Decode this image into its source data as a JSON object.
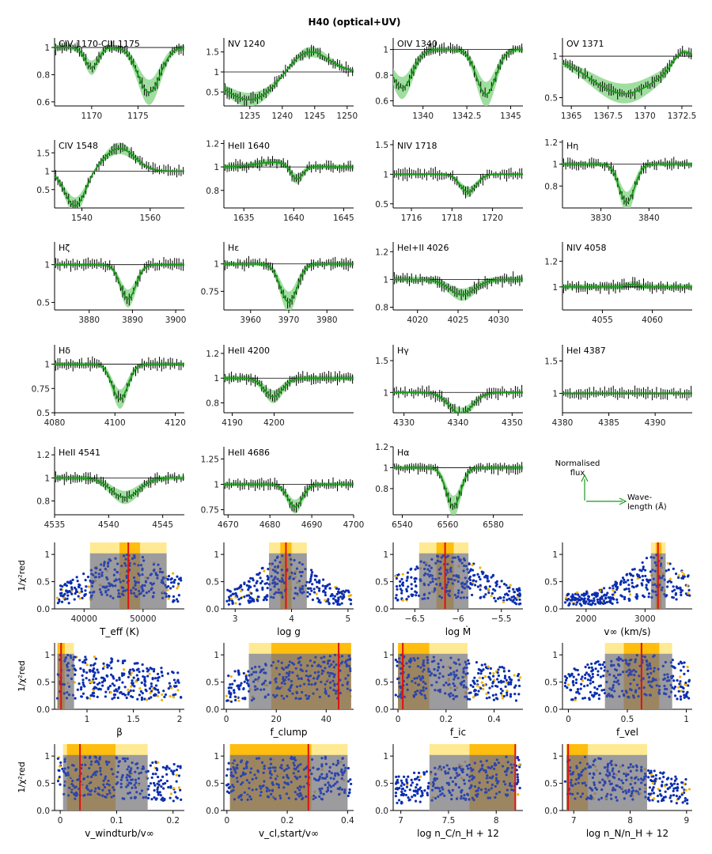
{
  "title": "H40 (optical+UV)",
  "colors": {
    "model": "#1a9a1a",
    "band": "#8fd88f",
    "obs": "#000000",
    "cloud": "#0a2db0",
    "cloudAlt": "#f2b400",
    "ylight": "#ffe680",
    "ydark": "#ffb800",
    "best": "#e01010"
  },
  "legend": {
    "y_label_1": "Normalised",
    "y_label_2": "flux",
    "x_label_1": "Wave-",
    "x_label_2": "length (Å)"
  },
  "chart_data": [
    {
      "type": "line",
      "label": "CIV 1170-CIII 1175",
      "xlim": [
        1166,
        1180
      ],
      "ylim": [
        0.57,
        1.07
      ],
      "xticks": [
        1170,
        1175
      ],
      "yticks": [
        0.6,
        0.8,
        1.0
      ],
      "profile": [
        {
          "c": 1170,
          "d": 0.15,
          "w": 0.7
        },
        {
          "c": 1176.2,
          "d": 0.33,
          "w": 1.2
        }
      ]
    },
    {
      "type": "line",
      "label": "NV 1240",
      "xlim": [
        1231,
        1251
      ],
      "ylim": [
        0.15,
        1.85
      ],
      "xticks": [
        1235,
        1240,
        1245,
        1250
      ],
      "yticks": [
        0.5,
        1.0,
        1.5
      ],
      "profile": [
        {
          "c": 1235,
          "d": 0.7,
          "w": 4
        },
        {
          "c": 1244,
          "d": -0.55,
          "w": 3
        }
      ]
    },
    {
      "type": "line",
      "label": "OIV 1340",
      "xlim": [
        1338.3,
        1345.7
      ],
      "ylim": [
        0.56,
        1.09
      ],
      "xticks": [
        1340.0,
        1342.5,
        1345.0
      ],
      "yticks": [
        0.6,
        0.8,
        1.0
      ],
      "profile": [
        {
          "c": 1338.8,
          "d": 0.3,
          "w": 0.6
        },
        {
          "c": 1343.6,
          "d": 0.35,
          "w": 0.55
        }
      ]
    },
    {
      "type": "line",
      "label": "OV 1371",
      "xlim": [
        1364.4,
        1373.2
      ],
      "ylim": [
        0.4,
        1.22
      ],
      "xticks": [
        1365.0,
        1367.5,
        1370.0,
        1372.5
      ],
      "yticks": [
        0.5,
        1.0
      ],
      "profile": [
        {
          "c": 1368.6,
          "d": 0.45,
          "w": 2.3
        },
        {
          "c": 1372.5,
          "d": -0.15,
          "w": 0.6
        }
      ]
    },
    {
      "type": "line",
      "label": "CIV 1548",
      "xlim": [
        1532,
        1570
      ],
      "ylim": [
        0.0,
        1.85
      ],
      "xticks": [
        1540,
        1560
      ],
      "yticks": [
        0.5,
        1.0,
        1.5
      ],
      "profile": [
        {
          "c": 1538,
          "d": 0.95,
          "w": 3
        },
        {
          "c": 1551,
          "d": -0.62,
          "w": 4.5
        }
      ]
    },
    {
      "type": "line",
      "label": "HeII 1640",
      "xlim": [
        1633,
        1646
      ],
      "ylim": [
        0.65,
        1.23
      ],
      "xticks": [
        1635,
        1640,
        1645
      ],
      "yticks": [
        0.8,
        1.0,
        1.2
      ],
      "profile": [
        {
          "c": 1640.3,
          "d": 0.12,
          "w": 0.6
        },
        {
          "c": 1638,
          "d": -0.04,
          "w": 1.8
        }
      ]
    },
    {
      "type": "line",
      "label": "NIV 1718",
      "xlim": [
        1715.1,
        1721.5
      ],
      "ylim": [
        0.43,
        1.58
      ],
      "xticks": [
        1716,
        1718,
        1720
      ],
      "yticks": [
        0.5,
        1.0,
        1.5
      ],
      "profile": [
        {
          "c": 1718.8,
          "d": 0.3,
          "w": 0.4
        }
      ]
    },
    {
      "type": "line",
      "label": "Hη",
      "xlim": [
        3822,
        3849
      ],
      "ylim": [
        0.6,
        1.22
      ],
      "xticks": [
        3830,
        3840
      ],
      "yticks": [
        0.8,
        1.0,
        1.2
      ],
      "profile": [
        {
          "c": 3835.4,
          "d": 0.35,
          "w": 1.6
        }
      ]
    },
    {
      "type": "line",
      "label": "Hζ",
      "xlim": [
        3872,
        3902
      ],
      "ylim": [
        0.4,
        1.3
      ],
      "xticks": [
        3880,
        3890,
        3900
      ],
      "yticks": [
        0.5,
        1.0
      ],
      "profile": [
        {
          "c": 3889,
          "d": 0.45,
          "w": 1.8
        }
      ]
    },
    {
      "type": "line",
      "label": "Hε",
      "xlim": [
        3953,
        3987
      ],
      "ylim": [
        0.58,
        1.2
      ],
      "xticks": [
        3960,
        3970,
        3980
      ],
      "yticks": [
        0.75,
        1.0
      ],
      "profile": [
        {
          "c": 3970,
          "d": 0.35,
          "w": 2.2
        }
      ]
    },
    {
      "type": "line",
      "label": "HeI+II 4026",
      "xlim": [
        4017,
        4033
      ],
      "ylim": [
        0.78,
        1.27
      ],
      "xticks": [
        4020,
        4025,
        4030
      ],
      "yticks": [
        0.8,
        1.0,
        1.2
      ],
      "profile": [
        {
          "c": 4025.5,
          "d": 0.11,
          "w": 1.6
        }
      ]
    },
    {
      "type": "line",
      "label": "NIV 4058",
      "xlim": [
        4051,
        4064
      ],
      "ylim": [
        0.82,
        1.35
      ],
      "xticks": [
        4055,
        4060
      ],
      "yticks": [
        1.0,
        1.2
      ],
      "profile": [
        {
          "c": 4058,
          "d": -0.02,
          "w": 0.6
        }
      ]
    },
    {
      "type": "line",
      "label": "Hδ",
      "xlim": [
        4080,
        4123
      ],
      "ylim": [
        0.5,
        1.2
      ],
      "xticks": [
        4080,
        4100,
        4120
      ],
      "yticks": [
        0.5,
        0.75,
        1.0
      ],
      "profile": [
        {
          "c": 4101.7,
          "d": 0.36,
          "w": 2.6
        }
      ]
    },
    {
      "type": "line",
      "label": "HeII 4200",
      "xlim": [
        4188,
        4219
      ],
      "ylim": [
        0.72,
        1.27
      ],
      "xticks": [
        4190,
        4200
      ],
      "yticks": [
        0.8,
        1.0,
        1.2
      ],
      "profile": [
        {
          "c": 4199.8,
          "d": 0.15,
          "w": 2.2
        }
      ]
    },
    {
      "type": "line",
      "label": "Hγ",
      "xlim": [
        4328,
        4352
      ],
      "ylim": [
        0.68,
        1.75
      ],
      "xticks": [
        4330,
        4340,
        4350
      ],
      "yticks": [
        1.0,
        1.5
      ],
      "profile": [
        {
          "c": 4340.5,
          "d": 0.33,
          "w": 2.2
        }
      ]
    },
    {
      "type": "line",
      "label": "HeI 4387",
      "xlim": [
        4380,
        4394
      ],
      "ylim": [
        0.7,
        1.75
      ],
      "xticks": [
        4380,
        4385,
        4390
      ],
      "yticks": [
        1.0,
        1.5
      ],
      "profile": []
    },
    {
      "type": "line",
      "label": "HeII 4541",
      "xlim": [
        4535,
        4547
      ],
      "ylim": [
        0.68,
        1.27
      ],
      "xticks": [
        4535,
        4540,
        4545
      ],
      "yticks": [
        0.8,
        1.0,
        1.2
      ],
      "profile": [
        {
          "c": 4541.5,
          "d": 0.17,
          "w": 1.3
        }
      ]
    },
    {
      "type": "line",
      "label": "HeII 4686",
      "xlim": [
        4669,
        4700
      ],
      "ylim": [
        0.7,
        1.37
      ],
      "xticks": [
        4670,
        4680,
        4690,
        4700
      ],
      "yticks": [
        0.75,
        1.0,
        1.25
      ],
      "profile": [
        {
          "c": 4686,
          "d": 0.22,
          "w": 1.8
        }
      ]
    },
    {
      "type": "line",
      "label": "Hα",
      "xlim": [
        6536,
        6593
      ],
      "ylim": [
        0.55,
        1.2
      ],
      "xticks": [
        6540,
        6560,
        6580
      ],
      "yticks": [
        0.8,
        1.0,
        1.2
      ],
      "profile": [
        {
          "c": 6562.5,
          "d": 0.37,
          "w": 3.2
        }
      ]
    },
    {
      "type": "scatter",
      "xlabel": "T_eff (K)",
      "xlim": [
        35000,
        57000
      ],
      "ylim": [
        0,
        1.22
      ],
      "xticks": [
        40000,
        50000
      ],
      "yticks": [
        0.0,
        0.5,
        1.0
      ],
      "peak": 47500,
      "spread": 6500,
      "best": 47500,
      "band1": [
        41000,
        54000
      ],
      "band2": [
        46000,
        49500
      ]
    },
    {
      "type": "scatter",
      "xlabel": "log g",
      "xlim": [
        2.8,
        5.1
      ],
      "ylim": [
        0,
        1.22
      ],
      "xticks": [
        3,
        4,
        5
      ],
      "yticks": [
        0.0,
        0.5,
        1.0
      ],
      "peak": 3.9,
      "spread": 0.45,
      "best": 3.9,
      "band1": [
        3.6,
        4.27
      ],
      "band2": [
        3.8,
        4.0
      ]
    },
    {
      "type": "scatter",
      "xlabel": "log Ṁ",
      "xlim": [
        -6.75,
        -5.25
      ],
      "ylim": [
        0,
        1.22
      ],
      "xticks": [
        -6.5,
        -6.0,
        -5.5
      ],
      "yticks": [
        0.0,
        0.5,
        1.0
      ],
      "peak": -6.15,
      "spread": 0.45,
      "best": -6.15,
      "band1": [
        -6.45,
        -5.88
      ],
      "band2": [
        -6.25,
        -6.05
      ]
    },
    {
      "type": "scatter",
      "xlabel": "v∞ (km/s)",
      "xlim": [
        1600,
        3800
      ],
      "ylim": [
        0,
        1.22
      ],
      "xticks": [
        2000,
        3000
      ],
      "yticks": [
        0.0,
        0.5,
        1.0
      ],
      "peak": 3220,
      "spread": 450,
      "best": 3220,
      "band1": [
        3100,
        3350
      ],
      "band2": [
        3180,
        3280
      ]
    },
    {
      "type": "scatter",
      "xlabel": "β",
      "xlim": [
        0.65,
        2.05
      ],
      "ylim": [
        0,
        1.22
      ],
      "xticks": [
        1.0,
        1.5,
        2.0
      ],
      "yticks": [
        0.0,
        0.5,
        1.0
      ],
      "peak": 0.72,
      "spread": 1.2,
      "best": 0.72,
      "band1": [
        0.68,
        0.86
      ],
      "band2": [
        0.68,
        0.76
      ]
    },
    {
      "type": "scatter",
      "xlabel": "f_clump",
      "xlim": [
        -1,
        51
      ],
      "ylim": [
        0,
        1.22
      ],
      "xticks": [
        0,
        20,
        40
      ],
      "yticks": [
        0.0,
        0.5,
        1.0
      ],
      "peak": 45,
      "spread": 40,
      "best": 45,
      "band1": [
        9,
        50
      ],
      "band2": [
        18,
        50
      ]
    },
    {
      "type": "scatter",
      "xlabel": "f_ic",
      "xlim": [
        -0.02,
        0.52
      ],
      "ylim": [
        0,
        1.22
      ],
      "xticks": [
        0.0,
        0.2,
        0.4
      ],
      "yticks": [
        0.0,
        0.5,
        1.0
      ],
      "peak": 0.02,
      "spread": 0.5,
      "best": 0.02,
      "band1": [
        0.0,
        0.29
      ],
      "band2": [
        0.0,
        0.13
      ]
    },
    {
      "type": "scatter",
      "xlabel": "f_vel",
      "xlim": [
        -0.05,
        1.05
      ],
      "ylim": [
        0,
        1.22
      ],
      "xticks": [
        0.0,
        0.5,
        1.0
      ],
      "yticks": [
        0.0,
        0.5,
        1.0
      ],
      "peak": 0.62,
      "spread": 0.6,
      "best": 0.62,
      "band1": [
        0.31,
        0.88
      ],
      "band2": [
        0.47,
        0.77
      ]
    },
    {
      "type": "scatter",
      "xlabel": "v_windturb/v∞",
      "xlim": [
        -0.01,
        0.22
      ],
      "ylim": [
        0,
        1.22
      ],
      "xticks": [
        0.0,
        0.1,
        0.2
      ],
      "yticks": [
        0.0,
        0.5,
        1.0
      ],
      "peak": 0.035,
      "spread": 0.25,
      "best": 0.035,
      "band1": [
        0.005,
        0.155
      ],
      "band2": [
        0.012,
        0.098
      ]
    },
    {
      "type": "scatter",
      "xlabel": "v_cl,start/v∞",
      "xlim": [
        -0.01,
        0.42
      ],
      "ylim": [
        0,
        1.22
      ],
      "xticks": [
        0.0,
        0.2,
        0.4
      ],
      "yticks": [
        0.0,
        0.5,
        1.0
      ],
      "peak": 0.27,
      "spread": 0.5,
      "best": 0.27,
      "band1": [
        0.01,
        0.4
      ],
      "band2": [
        0.01,
        0.28
      ]
    },
    {
      "type": "scatter",
      "xlabel": "log n_C/n_H + 12",
      "xlim": [
        6.92,
        8.28
      ],
      "ylim": [
        0,
        1.22
      ],
      "xticks": [
        7.0,
        7.5,
        8.0
      ],
      "yticks": [
        0.0,
        0.5,
        1.0
      ],
      "peak": 8.2,
      "spread": 1.0,
      "best": 8.2,
      "band1": [
        7.3,
        8.2
      ],
      "band2": [
        7.72,
        8.2
      ]
    },
    {
      "type": "scatter",
      "xlabel": "log n_N/n_H + 12",
      "xlim": [
        6.8,
        9.1
      ],
      "ylim": [
        0,
        1.22
      ],
      "xticks": [
        7,
        8,
        9
      ],
      "yticks": [
        0.0,
        0.5,
        1.0
      ],
      "peak": 6.9,
      "spread": 1.6,
      "best": 6.9,
      "band1": [
        6.87,
        8.3
      ],
      "band2": [
        6.87,
        7.25
      ]
    }
  ]
}
